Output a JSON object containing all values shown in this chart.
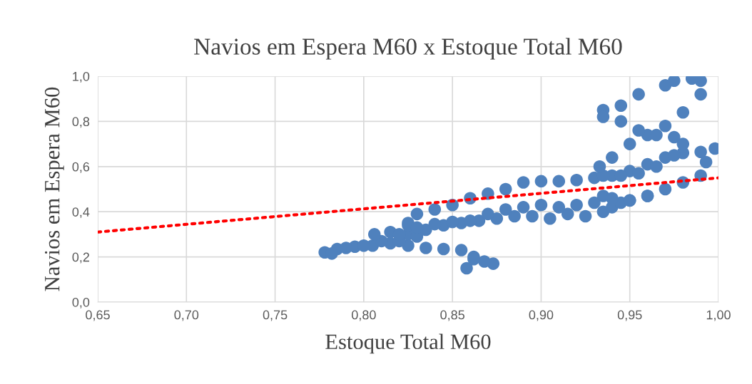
{
  "chart_data": {
    "type": "scatter",
    "title": "Navios em Espera M60 x Estoque Total M60",
    "xlabel": "Estoque Total M60",
    "ylabel": "Navios em Espera M60",
    "grid": true,
    "xlim": [
      0.65,
      1.0
    ],
    "ylim": [
      0.0,
      1.0
    ],
    "xticks": [
      {
        "value": 0.65,
        "label": "0,65"
      },
      {
        "value": 0.7,
        "label": "0,70"
      },
      {
        "value": 0.75,
        "label": "0,75"
      },
      {
        "value": 0.8,
        "label": "0,80"
      },
      {
        "value": 0.85,
        "label": "0,85"
      },
      {
        "value": 0.9,
        "label": "0,90"
      },
      {
        "value": 0.95,
        "label": "0,95"
      },
      {
        "value": 1.0,
        "label": "1,00"
      }
    ],
    "yticks": [
      {
        "value": 0.0,
        "label": "0,0"
      },
      {
        "value": 0.2,
        "label": "0,2"
      },
      {
        "value": 0.4,
        "label": "0,4"
      },
      {
        "value": 0.6,
        "label": "0,6"
      },
      {
        "value": 0.8,
        "label": "0,8"
      },
      {
        "value": 1.0,
        "label": "1,0"
      }
    ],
    "series": [
      {
        "color": "#4f81bd",
        "marker": "circle",
        "x": [
          0.873,
          0.868,
          0.862,
          0.858,
          0.862,
          0.855,
          0.845,
          0.835,
          0.825,
          0.815,
          0.805,
          0.795,
          0.785,
          0.778,
          0.782,
          0.79,
          0.8,
          0.81,
          0.806,
          0.815,
          0.825,
          0.82,
          0.83,
          0.825,
          0.835,
          0.845,
          0.855,
          0.865,
          0.875,
          0.885,
          0.895,
          0.905,
          0.915,
          0.925,
          0.935,
          0.94,
          0.945,
          0.95,
          0.96,
          0.97,
          0.98,
          0.99,
          0.993,
          0.998,
          0.99,
          0.98,
          0.97,
          0.96,
          0.95,
          0.94,
          0.93,
          0.92,
          0.91,
          0.9,
          0.89,
          0.88,
          0.87,
          0.86,
          0.85,
          0.84,
          0.83,
          0.825,
          0.82,
          0.83,
          0.84,
          0.85,
          0.86,
          0.87,
          0.88,
          0.89,
          0.9,
          0.91,
          0.92,
          0.93,
          0.935,
          0.94,
          0.95,
          0.96,
          0.945,
          0.935,
          0.933,
          0.94,
          0.95,
          0.96,
          0.97,
          0.98,
          0.99,
          0.99,
          0.985,
          0.975,
          0.97,
          0.955,
          0.945,
          0.935,
          0.935,
          0.945,
          0.955,
          0.965,
          0.975,
          0.98,
          0.975,
          0.965,
          0.955
        ],
        "values": [
          0.17,
          0.18,
          0.2,
          0.15,
          0.19,
          0.23,
          0.235,
          0.24,
          0.25,
          0.26,
          0.25,
          0.245,
          0.235,
          0.22,
          0.215,
          0.24,
          0.25,
          0.27,
          0.3,
          0.31,
          0.3,
          0.27,
          0.29,
          0.34,
          0.32,
          0.34,
          0.35,
          0.36,
          0.37,
          0.38,
          0.38,
          0.37,
          0.39,
          0.38,
          0.4,
          0.42,
          0.44,
          0.45,
          0.47,
          0.5,
          0.53,
          0.56,
          0.62,
          0.68,
          0.665,
          0.66,
          0.64,
          0.61,
          0.58,
          0.56,
          0.55,
          0.54,
          0.535,
          0.535,
          0.53,
          0.5,
          0.48,
          0.46,
          0.43,
          0.41,
          0.39,
          0.35,
          0.3,
          0.33,
          0.345,
          0.355,
          0.36,
          0.39,
          0.41,
          0.42,
          0.43,
          0.42,
          0.43,
          0.44,
          0.47,
          0.46,
          0.45,
          0.47,
          0.56,
          0.56,
          0.6,
          0.64,
          0.7,
          0.74,
          0.78,
          0.84,
          0.92,
          0.98,
          0.99,
          0.98,
          0.96,
          0.92,
          0.87,
          0.85,
          0.82,
          0.8,
          0.76,
          0.74,
          0.73,
          0.7,
          0.65,
          0.6,
          0.57
        ]
      },
      {
        "type": "line",
        "color": "#ff0000",
        "line_style": "dotted",
        "marker": "none",
        "x": [
          0.65,
          1.0
        ],
        "values": [
          0.31,
          0.55
        ]
      }
    ]
  }
}
